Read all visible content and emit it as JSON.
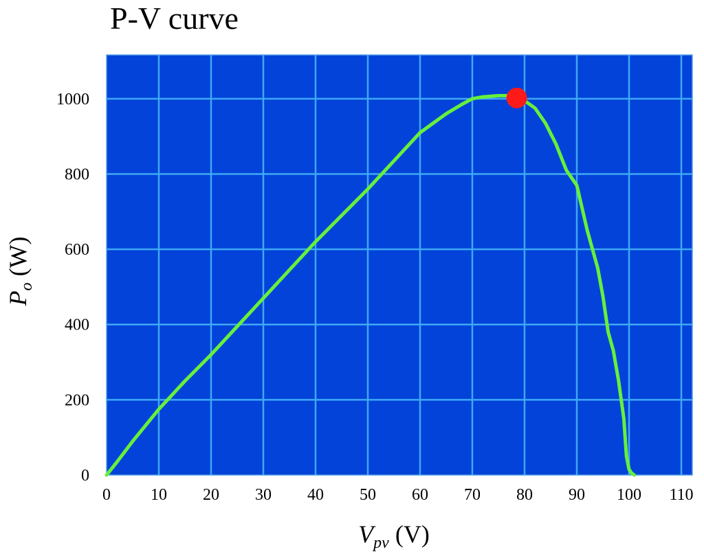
{
  "chart_data": {
    "type": "line",
    "title": "P-V curve",
    "xlabel": {
      "symbol": "V",
      "subscript": "pv",
      "unit": "(V)"
    },
    "ylabel": {
      "symbol": "P",
      "subscript": "o",
      "unit": "(W)"
    },
    "xlim": [
      0,
      110
    ],
    "ylim": [
      0,
      1100
    ],
    "xticks": [
      0,
      10,
      20,
      30,
      40,
      50,
      60,
      70,
      80,
      90,
      100,
      110
    ],
    "yticks": [
      0,
      200,
      400,
      600,
      800,
      1000
    ],
    "grid": true,
    "colors": {
      "plot_background": "#0343D9",
      "grid": "#3FA9F5",
      "curve": "#66F03C",
      "marker": "#FF1A1A"
    },
    "series": [
      {
        "x": [
          0,
          2,
          5,
          10,
          15,
          20,
          25,
          30,
          35,
          40,
          45,
          50,
          55,
          60,
          65,
          68,
          70,
          72,
          75,
          77,
          79,
          80,
          82,
          84,
          86,
          88,
          90,
          92,
          94,
          95,
          96,
          97,
          98,
          99,
          99.5,
          100,
          100.5,
          101
        ],
        "y": [
          0,
          35,
          90,
          175,
          250,
          320,
          395,
          470,
          545,
          620,
          690,
          760,
          835,
          910,
          960,
          985,
          1000,
          1005,
          1008,
          1008,
          1005,
          995,
          975,
          935,
          880,
          810,
          770,
          650,
          550,
          475,
          380,
          330,
          250,
          150,
          50,
          15,
          5,
          0
        ]
      }
    ],
    "annotations": [
      {
        "type": "point",
        "x": 78.5,
        "y": 1002
      }
    ]
  }
}
